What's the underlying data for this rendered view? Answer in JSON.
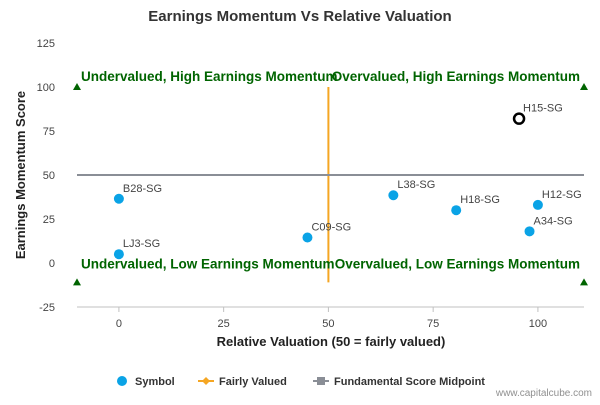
{
  "chart_data": {
    "type": "scatter",
    "title": "Earnings Momentum Vs Relative Valuation",
    "xlabel": "Relative Valuation (50 = fairly valued)",
    "ylabel": "Earnings Momentum Score",
    "xlim": [
      -10,
      111
    ],
    "ylim": [
      -25,
      125
    ],
    "x_ticks": [
      0,
      25,
      50,
      75,
      100
    ],
    "y_ticks": [
      -25,
      0,
      25,
      50,
      75,
      100,
      125
    ],
    "grid": false,
    "legend_position": "bottom",
    "series": [
      {
        "name": "Symbol",
        "color": "#0aa3e6",
        "points": [
          {
            "label": "B28-SG",
            "x": 0,
            "y": 36.5
          },
          {
            "label": "LJ3-SG",
            "x": 0,
            "y": 5
          },
          {
            "label": "C09-SG",
            "x": 45,
            "y": 14.5
          },
          {
            "label": "L38-SG",
            "x": 65.5,
            "y": 38.5
          },
          {
            "label": "H18-SG",
            "x": 80.5,
            "y": 30
          },
          {
            "label": "H12-SG",
            "x": 100,
            "y": 33
          },
          {
            "label": "A34-SG",
            "x": 98,
            "y": 18
          }
        ]
      },
      {
        "name": "Fairly Valued",
        "color": "#f5a623",
        "points": [
          {
            "x": 50,
            "y": -11
          },
          {
            "x": 50,
            "y": 100
          }
        ]
      },
      {
        "name": "Fundamental Score Midpoint",
        "color": "#8a8e96",
        "points": [
          {
            "x": -10,
            "y": 50
          },
          {
            "x": 111,
            "y": 50
          }
        ]
      }
    ],
    "highlight": {
      "label": "H15-SG",
      "x": 95.5,
      "y": 82,
      "color": "#000000"
    },
    "quadrant_labels": [
      {
        "text": "Undervalued, High Earnings Momentum",
        "x": -10,
        "y": 100,
        "anchor": "start"
      },
      {
        "text": "Overvalued, High Earnings Momentum",
        "x": 111,
        "y": 100,
        "anchor": "end"
      },
      {
        "text": "Undervalued, Low Earnings Momentum",
        "x": -10,
        "y": -6.5,
        "anchor": "start"
      },
      {
        "text": "Overvalued, Low Earnings Momentum",
        "x": 111,
        "y": -6.5,
        "anchor": "end"
      }
    ],
    "corner_markers": [
      {
        "x": -10,
        "y": 100
      },
      {
        "x": 111,
        "y": 100
      },
      {
        "x": -10,
        "y": -11
      },
      {
        "x": 111,
        "y": -11
      }
    ],
    "quadrant_color": "#006400",
    "credits": "www.capitalcube.com"
  }
}
